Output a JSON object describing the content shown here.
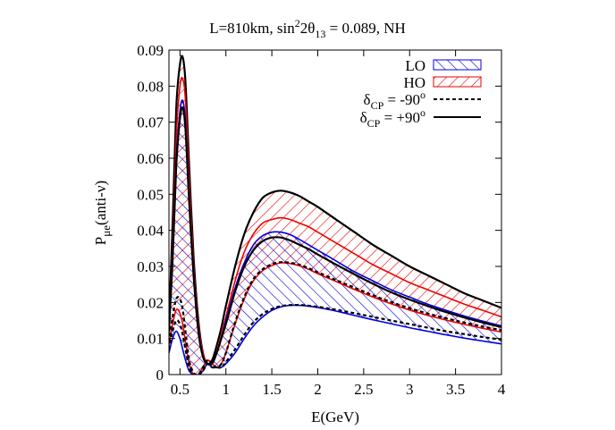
{
  "chart_data": {
    "type": "line",
    "title_parts": {
      "prefix": "L=810km, sin",
      "sup": "2",
      "mid": "2θ",
      "sub": "13",
      "suffix": " = 0.089, NH"
    },
    "xlabel": "E(GeV)",
    "ylabel": {
      "base": "P",
      "sub": "μe",
      "suffix": "(anti-ν)"
    },
    "xlim": [
      0.38,
      4
    ],
    "ylim": [
      0,
      0.09
    ],
    "x_ticks": [
      0.5,
      1,
      1.5,
      2,
      2.5,
      3,
      3.5,
      4
    ],
    "x_tick_labels": [
      "0.5",
      "1",
      "1.5",
      "2",
      "2.5",
      "3",
      "3.5",
      "4"
    ],
    "y_ticks": [
      0,
      0.01,
      0.02,
      0.03,
      0.04,
      0.05,
      0.06,
      0.07,
      0.08,
      0.09
    ],
    "y_tick_labels": [
      "0",
      "0.01",
      "0.02",
      "0.03",
      "0.04",
      "0.05",
      "0.06",
      "0.07",
      "0.08",
      "0.09"
    ],
    "grid": false,
    "legend_position": "top-right",
    "legend": [
      {
        "label": "LO",
        "kind": "band",
        "color": "#0000dd"
      },
      {
        "label": "HO",
        "kind": "band",
        "color": "#ee0000"
      },
      {
        "label_base": "δ",
        "label_sub": "CP",
        "label_rest": " = -90",
        "label_sup": "o",
        "kind": "dashed-line",
        "color": "#000000"
      },
      {
        "label_base": "δ",
        "label_sub": "CP",
        "label_rest": " = +90",
        "label_sup": "o",
        "kind": "solid-line",
        "color": "#000000"
      }
    ],
    "x": [
      0.38,
      0.42,
      0.46,
      0.5,
      0.53,
      0.56,
      0.6,
      0.65,
      0.7,
      0.75,
      0.8,
      0.85,
      0.9,
      0.95,
      1.0,
      1.1,
      1.2,
      1.3,
      1.4,
      1.5,
      1.6,
      1.7,
      1.8,
      1.9,
      2.0,
      2.2,
      2.4,
      2.6,
      2.8,
      3.0,
      3.2,
      3.4,
      3.6,
      3.8,
      4.0
    ],
    "series": [
      {
        "name": "HO δCP=+90° (upper)",
        "color": "#000000",
        "values": [
          0.014,
          0.042,
          0.074,
          0.086,
          0.088,
          0.081,
          0.058,
          0.032,
          0.015,
          0.006,
          0.003,
          0.004,
          0.008,
          0.013,
          0.019,
          0.03,
          0.039,
          0.045,
          0.049,
          0.0505,
          0.051,
          0.0505,
          0.0495,
          0.048,
          0.0465,
          0.043,
          0.0395,
          0.036,
          0.033,
          0.03,
          0.0275,
          0.025,
          0.0225,
          0.0205,
          0.0185
        ]
      },
      {
        "name": "HO δCP=-90° (upper)",
        "color": "#ee0000",
        "values": [
          0.012,
          0.036,
          0.066,
          0.08,
          0.082,
          0.076,
          0.054,
          0.03,
          0.014,
          0.006,
          0.003,
          0.003,
          0.006,
          0.011,
          0.016,
          0.026,
          0.034,
          0.039,
          0.042,
          0.043,
          0.0435,
          0.043,
          0.042,
          0.041,
          0.0395,
          0.0365,
          0.0335,
          0.0305,
          0.028,
          0.0255,
          0.0235,
          0.0215,
          0.0195,
          0.0178,
          0.016
        ]
      },
      {
        "name": "LO δCP=+90° (upper)",
        "color": "#0000dd",
        "values": [
          0.012,
          0.034,
          0.06,
          0.073,
          0.076,
          0.07,
          0.05,
          0.028,
          0.013,
          0.005,
          0.003,
          0.003,
          0.006,
          0.01,
          0.015,
          0.024,
          0.031,
          0.036,
          0.0385,
          0.0395,
          0.0395,
          0.0388,
          0.0375,
          0.036,
          0.0345,
          0.0315,
          0.0285,
          0.026,
          0.0235,
          0.0215,
          0.0195,
          0.0178,
          0.0162,
          0.0148,
          0.0135
        ]
      },
      {
        "name": "LO δCP=+90° (lower)",
        "color": "#000000",
        "values": [
          0.012,
          0.032,
          0.058,
          0.071,
          0.074,
          0.068,
          0.048,
          0.027,
          0.012,
          0.005,
          0.003,
          0.003,
          0.006,
          0.01,
          0.014,
          0.023,
          0.03,
          0.0345,
          0.037,
          0.038,
          0.038,
          0.0372,
          0.036,
          0.0348,
          0.0333,
          0.0305,
          0.0278,
          0.0252,
          0.0228,
          0.0208,
          0.019,
          0.0173,
          0.0158,
          0.0144,
          0.0132
        ]
      },
      {
        "name": "HO δCP=-90° (lower)",
        "color": "#ee0000",
        "values": [
          0.008,
          0.014,
          0.018,
          0.017,
          0.014,
          0.009,
          0.003,
          0.0,
          0.0,
          0.002,
          0.004,
          0.003,
          0.002,
          0.003,
          0.006,
          0.014,
          0.021,
          0.026,
          0.0288,
          0.0302,
          0.031,
          0.0308,
          0.0302,
          0.0292,
          0.028,
          0.0258,
          0.0236,
          0.0215,
          0.0196,
          0.0179,
          0.0164,
          0.0151,
          0.0139,
          0.0128,
          0.0118
        ]
      },
      {
        "name": "LO δCP=-90° (lower)",
        "color": "#0000dd",
        "values": [
          0.006,
          0.01,
          0.012,
          0.01,
          0.007,
          0.004,
          0.001,
          0.0,
          0.0,
          0.001,
          0.003,
          0.002,
          0.002,
          0.002,
          0.003,
          0.006,
          0.01,
          0.0135,
          0.016,
          0.0178,
          0.0188,
          0.0192,
          0.0192,
          0.019,
          0.0186,
          0.0176,
          0.0164,
          0.0152,
          0.0141,
          0.013,
          0.012,
          0.011,
          0.0101,
          0.0093,
          0.0085
        ]
      },
      {
        "name": "δCP=-90° dashed (HO)",
        "color": "#000000",
        "dashed": true,
        "values": [
          0.009,
          0.016,
          0.021,
          0.021,
          0.018,
          0.012,
          0.004,
          0.0005,
          0.0,
          0.002,
          0.004,
          0.003,
          0.002,
          0.003,
          0.006,
          0.0145,
          0.0215,
          0.0265,
          0.0292,
          0.0306,
          0.0312,
          0.031,
          0.0305,
          0.0295,
          0.0284,
          0.0262,
          0.0241,
          0.022,
          0.0201,
          0.0184,
          0.0169,
          0.0156,
          0.0144,
          0.0133,
          0.0123
        ]
      },
      {
        "name": "δCP=-90° dashed (LO)",
        "color": "#000000",
        "dashed": true,
        "values": [
          0.007,
          0.012,
          0.015,
          0.014,
          0.011,
          0.007,
          0.002,
          0.0,
          0.0,
          0.001,
          0.003,
          0.002,
          0.002,
          0.002,
          0.0035,
          0.007,
          0.011,
          0.0145,
          0.0168,
          0.0182,
          0.019,
          0.0193,
          0.0193,
          0.0191,
          0.0188,
          0.018,
          0.017,
          0.016,
          0.015,
          0.014,
          0.013,
          0.012,
          0.0112,
          0.0104,
          0.0097
        ]
      }
    ]
  }
}
